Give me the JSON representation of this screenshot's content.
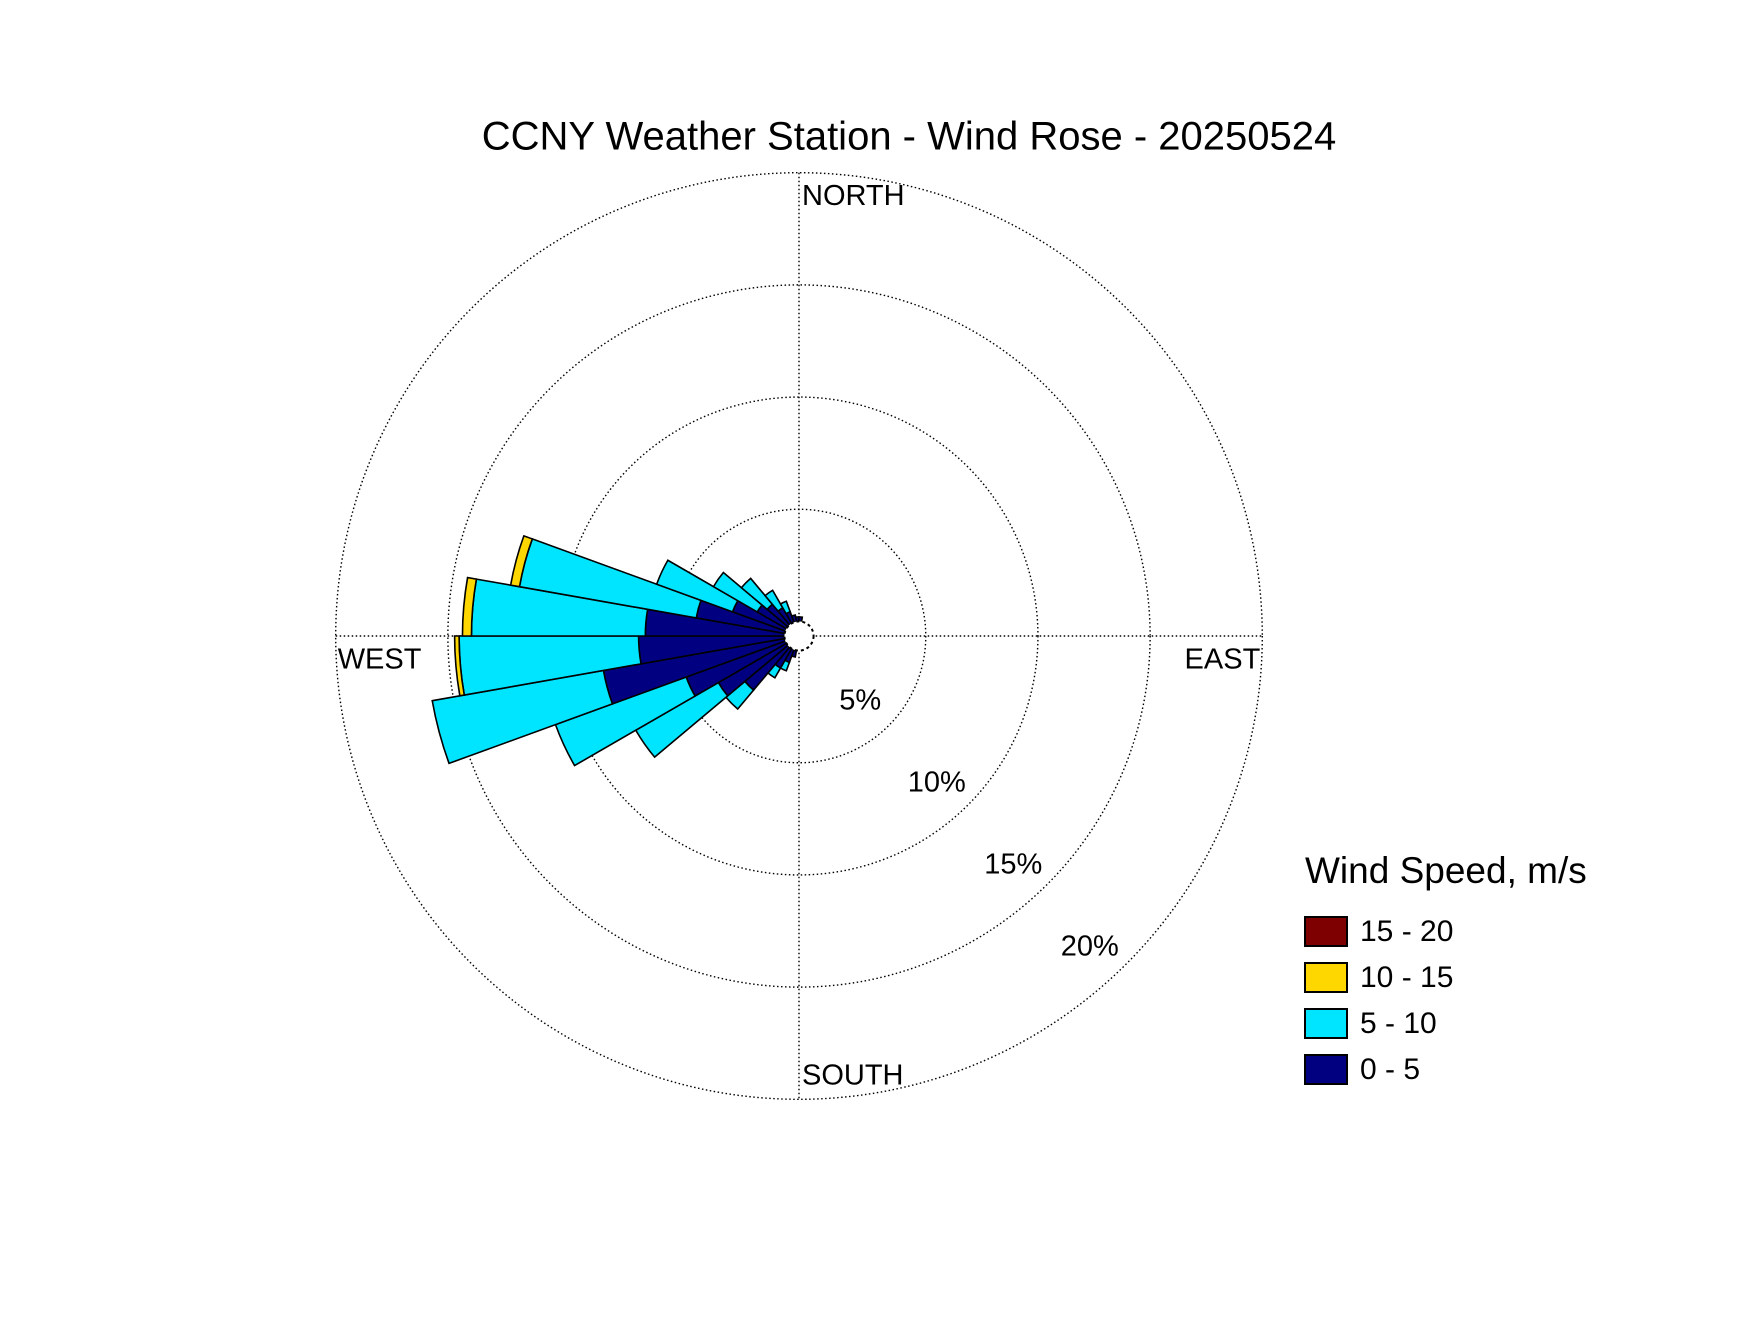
{
  "chart_data": {
    "type": "windrose",
    "title": "CCNY Weather Station - Wind Rose - 20250524",
    "compass_labels": [
      "NORTH",
      "EAST",
      "SOUTH",
      "WEST"
    ],
    "legend_title": "Wind Speed, m/s",
    "directions": [
      195,
      205,
      215,
      225,
      235,
      245,
      255,
      265,
      275,
      285,
      295,
      305,
      315,
      325,
      335,
      345,
      355,
      5
    ],
    "series": [
      {
        "name": "0 - 5",
        "color": "#000080",
        "values": [
          0.3,
          0.6,
          1.0,
          2.5,
          3.5,
          4.7,
          8.2,
          6.5,
          6.2,
          4.0,
          2.5,
          1.5,
          1.2,
          0.8,
          0.5,
          0.3,
          0.2,
          0.2
        ]
      },
      {
        "name": "5 - 10",
        "color": "#00e5ff",
        "values": [
          0,
          0.4,
          0.5,
          1.1,
          4.25,
          6.2,
          7.75,
          8.0,
          7.75,
          8.0,
          3.6,
          2.25,
          1.5,
          0.9,
          0.5,
          0,
          0,
          0
        ]
      },
      {
        "name": "10 - 15",
        "color": "#ffd700",
        "values": [
          0,
          0,
          0,
          0,
          0,
          0,
          0,
          0.2,
          0.4,
          0.4,
          0,
          0,
          0,
          0,
          0,
          0,
          0,
          0
        ]
      },
      {
        "name": "15 - 20",
        "color": "#7f0000",
        "values": [
          0,
          0,
          0,
          0,
          0,
          0,
          0,
          0,
          0,
          0,
          0,
          0,
          0,
          0,
          0,
          0,
          0,
          0
        ]
      }
    ],
    "rlim": [
      0,
      20
    ],
    "rticks": [
      {
        "value": 5,
        "label": "5%"
      },
      {
        "value": 10,
        "label": "10%"
      },
      {
        "value": 15,
        "label": "15%"
      },
      {
        "value": 20,
        "label": "20%"
      }
    ],
    "grid": true
  }
}
